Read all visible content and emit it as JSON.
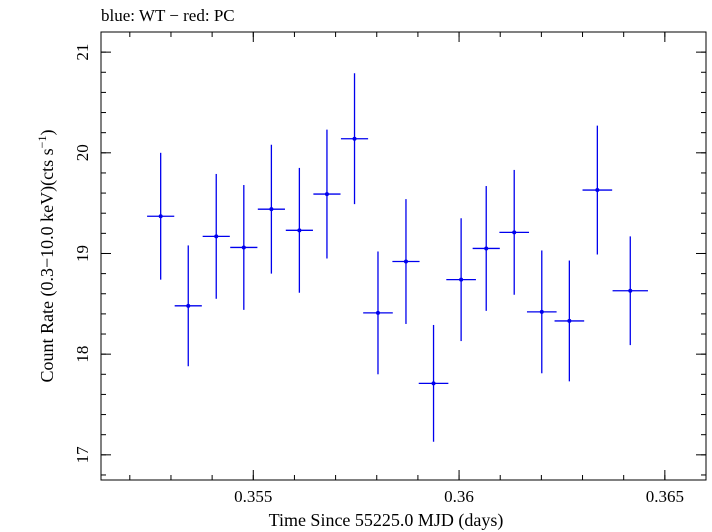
{
  "chart_data": {
    "type": "scatter",
    "title": "blue: WT − red: PC",
    "xlabel": "Time Since 55225.0 MJD (days)",
    "ylabel_main": "Count Rate (0.3−10.0 keV)(cts s",
    "ylabel_sup": "−1",
    "ylabel_close": ")",
    "xlim": [
      0.3513,
      0.366
    ],
    "ylim": [
      16.75,
      21.2
    ],
    "xticks": [
      0.355,
      0.36,
      0.365
    ],
    "xtick_labels": [
      "0.355",
      "0.36",
      "0.365"
    ],
    "yticks": [
      17,
      18,
      19,
      20,
      21
    ],
    "ytick_labels": [
      "17",
      "18",
      "19",
      "20",
      "21"
    ],
    "x_minor_step": 0.001,
    "y_minor_step": 0.2,
    "grid": false,
    "series": [
      {
        "color": "#0000ee",
        "points": [
          {
            "x": 0.35275,
            "y": 19.37,
            "xerr": 0.00033,
            "yerr": 0.63
          },
          {
            "x": 0.35342,
            "y": 18.48,
            "xerr": 0.00033,
            "yerr": 0.6
          },
          {
            "x": 0.3541,
            "y": 19.17,
            "xerr": 0.00033,
            "yerr": 0.62
          },
          {
            "x": 0.35477,
            "y": 19.06,
            "xerr": 0.00033,
            "yerr": 0.62
          },
          {
            "x": 0.35544,
            "y": 19.44,
            "xerr": 0.00033,
            "yerr": 0.64
          },
          {
            "x": 0.35612,
            "y": 19.23,
            "xerr": 0.00033,
            "yerr": 0.62
          },
          {
            "x": 0.35679,
            "y": 19.59,
            "xerr": 0.00033,
            "yerr": 0.64
          },
          {
            "x": 0.35746,
            "y": 20.14,
            "xerr": 0.00033,
            "yerr": 0.65
          },
          {
            "x": 0.35803,
            "y": 18.41,
            "xerr": 0.00036,
            "yerr": 0.61
          },
          {
            "x": 0.35871,
            "y": 18.92,
            "xerr": 0.00033,
            "yerr": 0.62
          },
          {
            "x": 0.35938,
            "y": 17.71,
            "xerr": 0.00036,
            "yerr": 0.58
          },
          {
            "x": 0.36005,
            "y": 18.74,
            "xerr": 0.00036,
            "yerr": 0.61
          },
          {
            "x": 0.36066,
            "y": 19.05,
            "xerr": 0.00033,
            "yerr": 0.62
          },
          {
            "x": 0.36134,
            "y": 19.21,
            "xerr": 0.00036,
            "yerr": 0.62
          },
          {
            "x": 0.36201,
            "y": 18.42,
            "xerr": 0.00036,
            "yerr": 0.61
          },
          {
            "x": 0.36268,
            "y": 18.33,
            "xerr": 0.00036,
            "yerr": 0.6
          },
          {
            "x": 0.36336,
            "y": 19.63,
            "xerr": 0.00036,
            "yerr": 0.64
          },
          {
            "x": 0.36416,
            "y": 18.63,
            "xerr": 0.00043,
            "yerr": 0.54
          }
        ]
      }
    ]
  }
}
